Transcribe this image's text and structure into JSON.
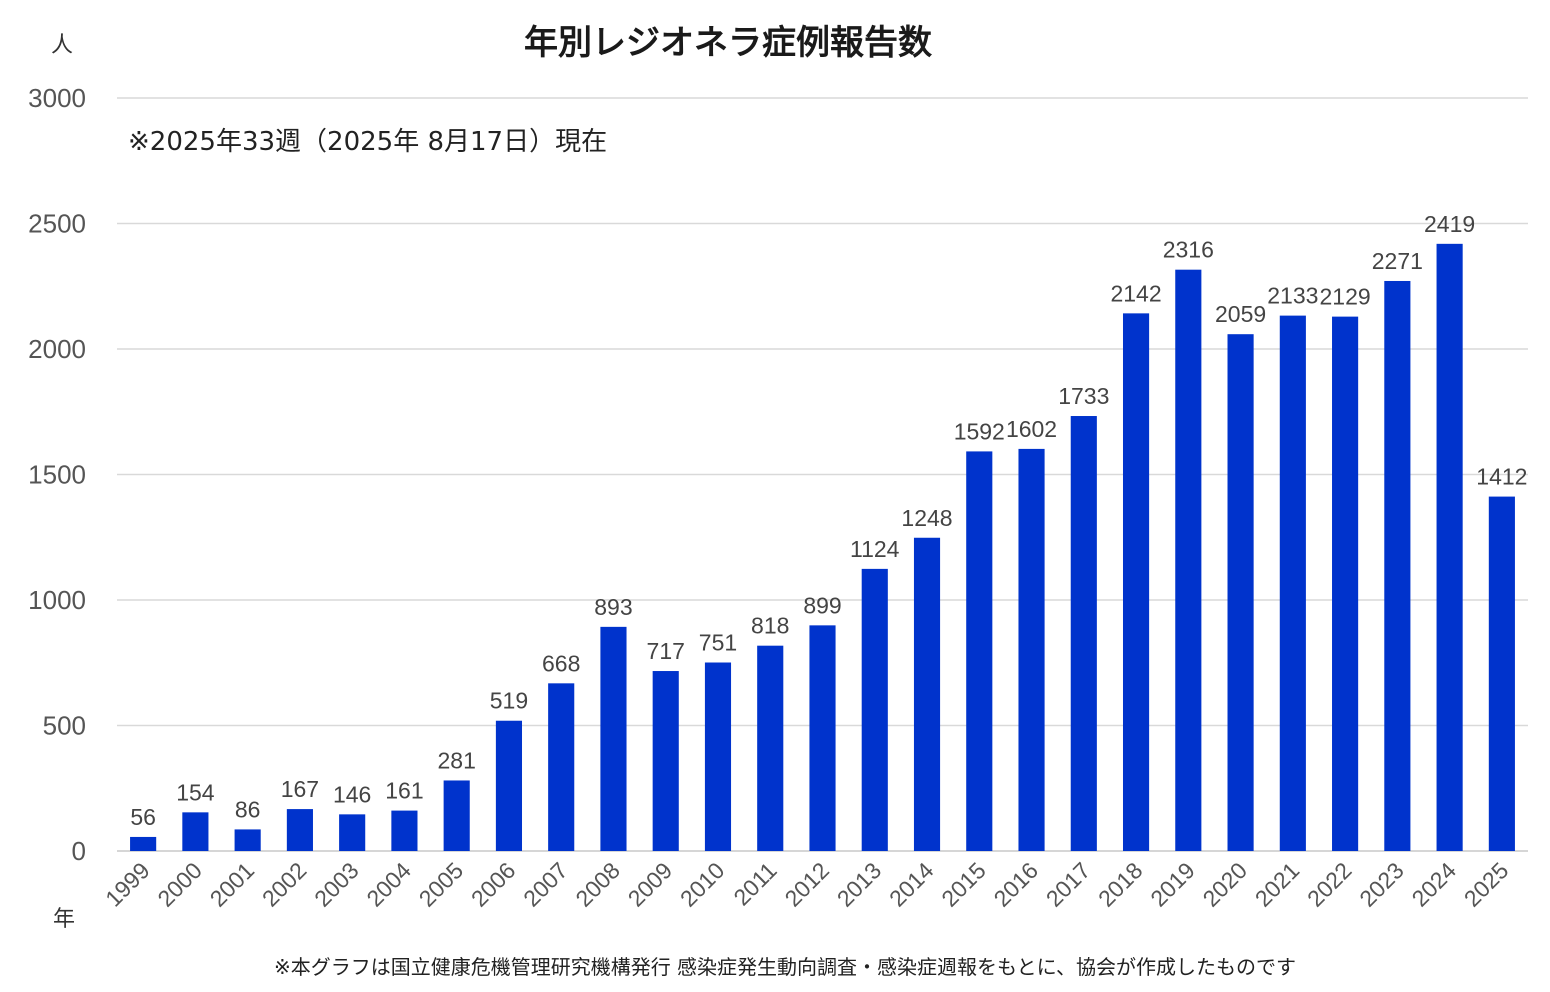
{
  "chart_data": {
    "type": "bar",
    "title": "年別レジオネラ症例報告数",
    "subtitle": "※2025年33週（2025年 8月17日）現在",
    "ylabel": "人",
    "xlabel": "年",
    "ylim": [
      0,
      3000
    ],
    "yticks": [
      0,
      500,
      1000,
      1500,
      2000,
      2500,
      3000
    ],
    "grid": true,
    "bar_color": "#0033cc",
    "categories": [
      "1999",
      "2000",
      "2001",
      "2002",
      "2003",
      "2004",
      "2005",
      "2006",
      "2007",
      "2008",
      "2009",
      "2010",
      "2011",
      "2012",
      "2013",
      "2014",
      "2015",
      "2016",
      "2017",
      "2018",
      "2019",
      "2020",
      "2021",
      "2022",
      "2023",
      "2024",
      "2025"
    ],
    "values": [
      56,
      154,
      86,
      167,
      146,
      161,
      281,
      519,
      668,
      893,
      717,
      751,
      818,
      899,
      1124,
      1248,
      1592,
      1602,
      1733,
      2142,
      2316,
      2059,
      2133,
      2129,
      2271,
      2419,
      1412
    ],
    "footnote": "※本グラフは国立健康危機管理研究機構発行 感染症発生動向調査・感染症週報をもとに、協会が作成したものです"
  }
}
